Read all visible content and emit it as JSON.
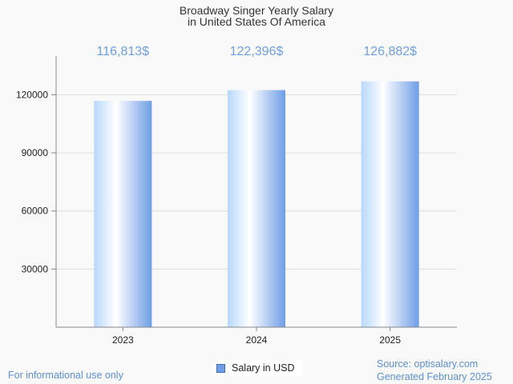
{
  "chart_data": {
    "type": "bar",
    "title_lines": [
      "Broadway Singer Yearly Salary",
      "in United States Of America"
    ],
    "categories": [
      "2023",
      "2024",
      "2025"
    ],
    "values": [
      116813,
      122396,
      126882
    ],
    "data_labels": [
      "116,813$",
      "122,396$",
      "126,882$"
    ],
    "series": [
      {
        "name": "Salary in USD",
        "values": [
          116813,
          122396,
          126882
        ]
      }
    ],
    "yticks": [
      30000,
      60000,
      90000,
      120000
    ],
    "ylim": [
      0,
      140000
    ],
    "xlabel": "",
    "ylabel": "",
    "grid": true,
    "legend_position": "bottom-center"
  },
  "footer": {
    "disclaimer": "For informational use only",
    "source": "Source: optisalary.com",
    "generated": "Generated February 2025"
  },
  "colors": {
    "bar_light": "#ffffff",
    "bar_mid": "#b8d8fb",
    "bar_dark": "#6f9ee6",
    "accent_text": "#5b8fd8",
    "grid": "#dddddd",
    "axis": "#888888"
  }
}
